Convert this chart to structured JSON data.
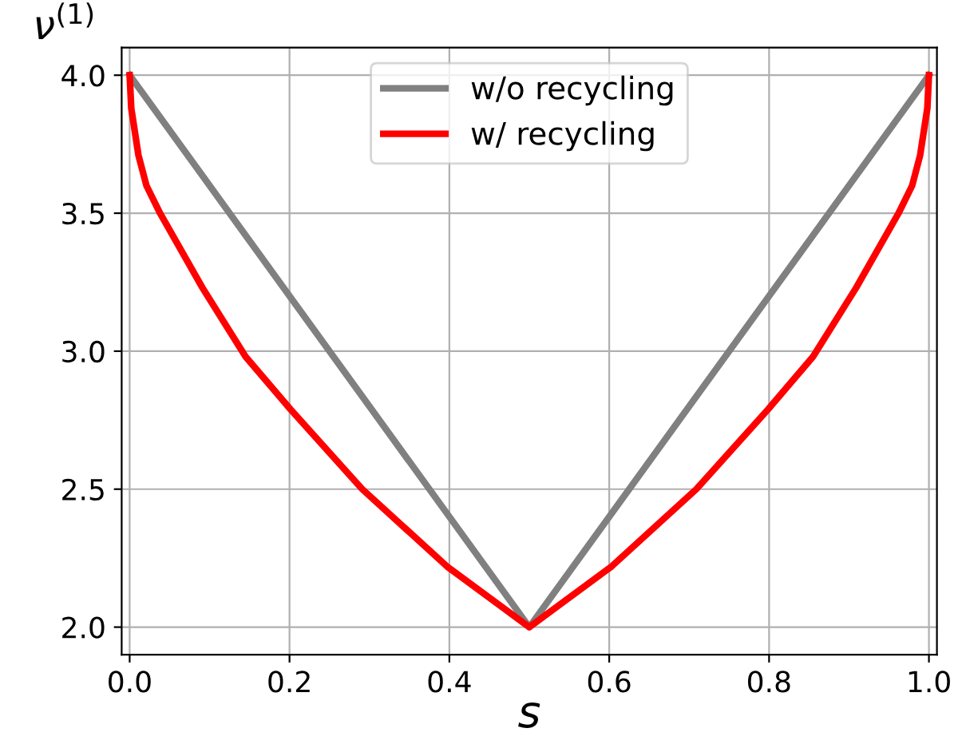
{
  "chart_data": {
    "type": "line",
    "xlabel": "s",
    "ylabel": "ν$^{(1)}$",
    "series": [
      {
        "name": "w/o recycling",
        "color": "#808080",
        "x": [
          0,
          0.5,
          1
        ],
        "values": [
          4.0,
          2.0,
          4.0
        ]
      },
      {
        "name": "w/ recycling",
        "color": "#ff0000",
        "x": [
          0,
          0.002,
          0.011,
          0.021,
          0.038,
          0.091,
          0.145,
          0.201,
          0.291,
          0.397,
          0.5,
          0.603,
          0.709,
          0.799,
          0.855,
          0.909,
          0.962,
          0.979,
          0.989,
          0.998,
          1
        ],
        "values": [
          4.0,
          3.88,
          3.71,
          3.6,
          3.5,
          3.23,
          2.98,
          2.79,
          2.5,
          2.22,
          2.0,
          2.22,
          2.5,
          2.79,
          2.98,
          3.23,
          3.5,
          3.6,
          3.71,
          3.88,
          4.0
        ]
      }
    ],
    "xlim": [
      -0.01,
      1.01
    ],
    "ylim": [
      1.9,
      4.1
    ],
    "xticks": [
      {
        "value": 0,
        "label": "0.0"
      },
      0.2,
      0.4,
      0.6,
      0.8,
      {
        "value": 1,
        "label": "1.0"
      }
    ],
    "yticks": [
      {
        "value": 2,
        "label": "2.0"
      },
      2.5,
      {
        "value": 3,
        "label": "3.0"
      },
      3.5,
      {
        "value": 4,
        "label": "4.0"
      }
    ],
    "grid": true,
    "legend": "top",
    "line_style": "solid",
    "marker": "none"
  }
}
